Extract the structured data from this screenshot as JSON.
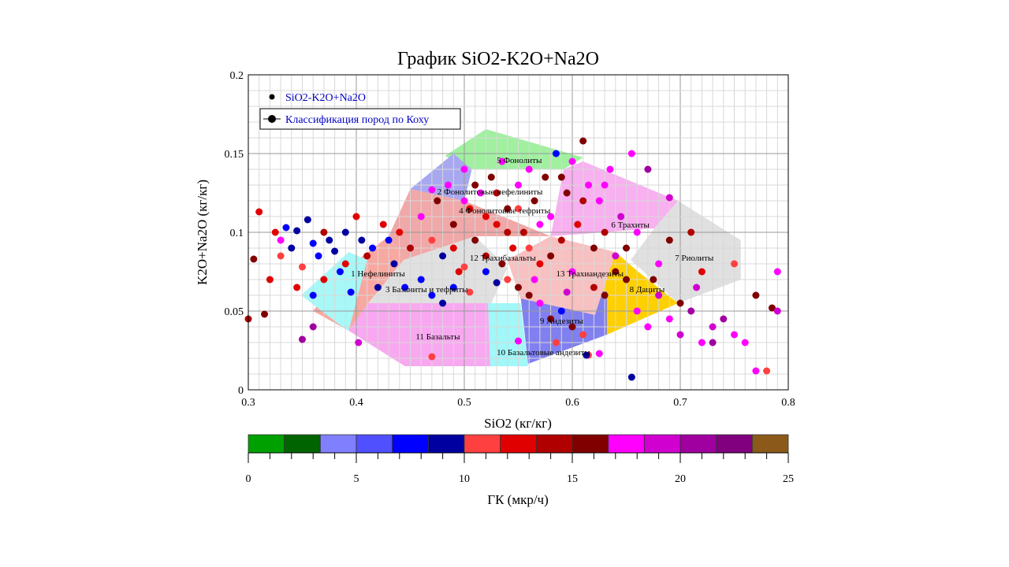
{
  "chart_data": {
    "type": "scatter",
    "title": "График  SiO2-K2O+Na2O",
    "xlabel": "SiO2 (кг/кг)",
    "ylabel": "K2O+Na2O (кг/кг)",
    "xlim": [
      0.3,
      0.8
    ],
    "ylim": [
      0,
      0.2
    ],
    "xticks": [
      "0.3",
      "0.4",
      "0.5",
      "0.6",
      "0.7",
      "0.8"
    ],
    "yticks": [
      "0",
      "0.05",
      "0.1",
      "0.15",
      "0.2"
    ],
    "grid": true,
    "legend": {
      "placement": "top-left",
      "entries": [
        "SiO2-K2O+Na2O",
        "Классификация пород по Коху"
      ],
      "text_color": "#0000c0"
    },
    "colorbar": {
      "label": "ГК (мкр/ч)",
      "range": [
        0,
        25
      ],
      "ticks": [
        "0",
        "5",
        "10",
        "15",
        "20",
        "25"
      ],
      "colors": [
        "#00a000",
        "#006400",
        "#8080ff",
        "#5050ff",
        "#0000ff",
        "#0000a0",
        "#ff4040",
        "#e00000",
        "#b00000",
        "#800000",
        "#ff00ff",
        "#d000d0",
        "#a000a0",
        "#800080",
        "#8b5a1a"
      ]
    },
    "regions": [
      {
        "label": "5 Фонолиты",
        "color": "#a0f0a0",
        "label_at": [
          0.53,
          0.144
        ],
        "poly": [
          [
            0.482,
            0.1485
          ],
          [
            0.52,
            0.1655
          ],
          [
            0.61,
            0.1475
          ],
          [
            0.592,
            0.14
          ],
          [
            0.507,
            0.14
          ]
        ]
      },
      {
        "label": "2 Фонолитовые нефелиниты",
        "color": "#a8a8f0",
        "label_at": [
          0.475,
          0.124
        ],
        "poly": [
          [
            0.45,
            0.1275
          ],
          [
            0.49,
            0.15
          ],
          [
            0.507,
            0.14
          ],
          [
            0.5,
            0.12
          ]
        ]
      },
      {
        "label": "6 Трахиты",
        "color": "#f8b0f0",
        "label_at": [
          0.636,
          0.103
        ],
        "poly": [
          [
            0.61,
            0.145
          ],
          [
            0.698,
            0.12
          ],
          [
            0.676,
            0.1025
          ],
          [
            0.58,
            0.0975
          ],
          [
            0.592,
            0.14
          ]
        ]
      },
      {
        "label": "7 Риолиты",
        "color": "#e0e0e0",
        "label_at": [
          0.695,
          0.082
        ],
        "poly": [
          [
            0.698,
            0.12
          ],
          [
            0.756,
            0.095
          ],
          [
            0.756,
            0.07
          ],
          [
            0.698,
            0.055
          ],
          [
            0.654,
            0.0825
          ],
          [
            0.676,
            0.1025
          ]
        ]
      },
      {
        "label": "8 Дациты",
        "color": "#ffd000",
        "label_at": [
          0.653,
          0.062
        ],
        "poly": [
          [
            0.64,
            0.0875
          ],
          [
            0.661,
            0.075
          ],
          [
            0.698,
            0.055
          ],
          [
            0.632,
            0.035
          ],
          [
            0.621,
            0.0475
          ]
        ]
      },
      {
        "label": "9 Андезиты",
        "color": "#8080f0",
        "label_at": [
          0.57,
          0.042
        ],
        "poly": [
          [
            0.552,
            0.06
          ],
          [
            0.632,
            0.0625
          ],
          [
            0.632,
            0.035
          ],
          [
            0.559,
            0.0165
          ]
        ]
      },
      {
        "label": "10 Базальтовые андезиты",
        "color": "#a0f8f8",
        "label_at": [
          0.53,
          0.022
        ],
        "poly": [
          [
            0.522,
            0.055
          ],
          [
            0.552,
            0.055
          ],
          [
            0.559,
            0.015
          ],
          [
            0.524,
            0.015
          ]
        ]
      },
      {
        "label": "11 Базальты",
        "color": "#f8a8f0",
        "label_at": [
          0.455,
          0.032
        ],
        "poly": [
          [
            0.411,
            0.055
          ],
          [
            0.522,
            0.055
          ],
          [
            0.524,
            0.015
          ],
          [
            0.445,
            0.015
          ],
          [
            0.393,
            0.0375
          ]
        ]
      },
      {
        "label": "3 Базаниты и тефриты",
        "color": "#f8a8a0",
        "label_at": [
          0.427,
          0.062
        ],
        "poly": [
          [
            0.393,
            0.0375
          ],
          [
            0.411,
            0.055
          ],
          [
            0.444,
            0.0825
          ],
          [
            0.43,
            0.0975
          ],
          [
            0.387,
            0.075
          ],
          [
            0.36,
            0.05
          ]
        ]
      },
      {
        "label": "1 Нефелиниты",
        "color": "#a8f8f8",
        "label_at": [
          0.395,
          0.072
        ],
        "poly": [
          [
            0.349,
            0.06
          ],
          [
            0.393,
            0.0875
          ],
          [
            0.41,
            0.0825
          ],
          [
            0.393,
            0.0375
          ],
          [
            0.387,
            0.04
          ]
        ]
      },
      {
        "label": "12 Трахибазальты",
        "color": "#e0e0e0",
        "label_at": [
          0.505,
          0.082
        ],
        "poly": [
          [
            0.444,
            0.0825
          ],
          [
            0.51,
            0.0975
          ],
          [
            0.54,
            0.0775
          ],
          [
            0.525,
            0.055
          ],
          [
            0.411,
            0.055
          ]
        ]
      },
      {
        "label": "13 Трахиандезиты",
        "color": "#f8c0c0",
        "label_at": [
          0.585,
          0.072
        ],
        "poly": [
          [
            0.54,
            0.0825
          ],
          [
            0.58,
            0.0975
          ],
          [
            0.64,
            0.0875
          ],
          [
            0.621,
            0.0475
          ],
          [
            0.552,
            0.058
          ]
        ]
      },
      {
        "label": "4 Фонолитовые тефриты",
        "color": "#f0a8a8",
        "label_at": [
          0.495,
          0.112
        ],
        "poly": [
          [
            0.43,
            0.0975
          ],
          [
            0.45,
            0.1275
          ],
          [
            0.5,
            0.12
          ],
          [
            0.58,
            0.0975
          ],
          [
            0.51,
            0.0975
          ],
          [
            0.444,
            0.0825
          ]
        ]
      }
    ],
    "series_points": [
      [
        0.3,
        0.045,
        14
      ],
      [
        0.31,
        0.113,
        12
      ],
      [
        0.305,
        0.083,
        15
      ],
      [
        0.32,
        0.07,
        13
      ],
      [
        0.33,
        0.095,
        17
      ],
      [
        0.335,
        0.103,
        8
      ],
      [
        0.34,
        0.09,
        9
      ],
      [
        0.345,
        0.101,
        9
      ],
      [
        0.35,
        0.078,
        11
      ],
      [
        0.355,
        0.108,
        9
      ],
      [
        0.36,
        0.093,
        8
      ],
      [
        0.365,
        0.085,
        7
      ],
      [
        0.37,
        0.1,
        14
      ],
      [
        0.375,
        0.095,
        9
      ],
      [
        0.38,
        0.088,
        9
      ],
      [
        0.385,
        0.075,
        8
      ],
      [
        0.39,
        0.08,
        13
      ],
      [
        0.395,
        0.062,
        8
      ],
      [
        0.4,
        0.11,
        12
      ],
      [
        0.405,
        0.095,
        9
      ],
      [
        0.41,
        0.085,
        14
      ],
      [
        0.415,
        0.09,
        8
      ],
      [
        0.42,
        0.065,
        9
      ],
      [
        0.425,
        0.105,
        13
      ],
      [
        0.43,
        0.095,
        8
      ],
      [
        0.435,
        0.08,
        9
      ],
      [
        0.44,
        0.1,
        12
      ],
      [
        0.445,
        0.065,
        8
      ],
      [
        0.35,
        0.032,
        20
      ],
      [
        0.36,
        0.04,
        20
      ],
      [
        0.315,
        0.048,
        15
      ],
      [
        0.402,
        0.03,
        19
      ],
      [
        0.33,
        0.085,
        11
      ],
      [
        0.345,
        0.065,
        12
      ],
      [
        0.37,
        0.07,
        13
      ],
      [
        0.39,
        0.1,
        9
      ],
      [
        0.325,
        0.1,
        12
      ],
      [
        0.36,
        0.06,
        8
      ],
      [
        0.45,
        0.09,
        14
      ],
      [
        0.46,
        0.11,
        17
      ],
      [
        0.47,
        0.095,
        11
      ],
      [
        0.475,
        0.12,
        16
      ],
      [
        0.48,
        0.085,
        9
      ],
      [
        0.485,
        0.13,
        17
      ],
      [
        0.49,
        0.105,
        15
      ],
      [
        0.495,
        0.075,
        12
      ],
      [
        0.5,
        0.14,
        18
      ],
      [
        0.505,
        0.115,
        13
      ],
      [
        0.51,
        0.095,
        16
      ],
      [
        0.515,
        0.125,
        17
      ],
      [
        0.52,
        0.085,
        14
      ],
      [
        0.525,
        0.135,
        15
      ],
      [
        0.53,
        0.105,
        12
      ],
      [
        0.535,
        0.145,
        17
      ],
      [
        0.54,
        0.115,
        16
      ],
      [
        0.545,
        0.09,
        13
      ],
      [
        0.55,
        0.13,
        18
      ],
      [
        0.555,
        0.1,
        14
      ],
      [
        0.56,
        0.14,
        17
      ],
      [
        0.565,
        0.12,
        15
      ],
      [
        0.57,
        0.08,
        12
      ],
      [
        0.575,
        0.135,
        16
      ],
      [
        0.58,
        0.11,
        17
      ],
      [
        0.585,
        0.15,
        8
      ],
      [
        0.59,
        0.095,
        14
      ],
      [
        0.595,
        0.125,
        15
      ],
      [
        0.6,
        0.145,
        17
      ],
      [
        0.605,
        0.105,
        13
      ],
      [
        0.61,
        0.158,
        16
      ],
      [
        0.615,
        0.13,
        17
      ],
      [
        0.62,
        0.09,
        15
      ],
      [
        0.625,
        0.12,
        18
      ],
      [
        0.63,
        0.1,
        14
      ],
      [
        0.635,
        0.14,
        17
      ],
      [
        0.64,
        0.075,
        16
      ],
      [
        0.645,
        0.11,
        19
      ],
      [
        0.65,
        0.09,
        15
      ],
      [
        0.655,
        0.15,
        17
      ],
      [
        0.46,
        0.07,
        8
      ],
      [
        0.47,
        0.06,
        8
      ],
      [
        0.48,
        0.055,
        9
      ],
      [
        0.49,
        0.065,
        7
      ],
      [
        0.5,
        0.078,
        10
      ],
      [
        0.52,
        0.075,
        8
      ],
      [
        0.53,
        0.068,
        9
      ],
      [
        0.54,
        0.07,
        11
      ],
      [
        0.55,
        0.065,
        16
      ],
      [
        0.56,
        0.06,
        15
      ],
      [
        0.57,
        0.055,
        17
      ],
      [
        0.58,
        0.045,
        15
      ],
      [
        0.59,
        0.05,
        8
      ],
      [
        0.6,
        0.04,
        15
      ],
      [
        0.61,
        0.035,
        11
      ],
      [
        0.615,
        0.022,
        10
      ],
      [
        0.625,
        0.023,
        17
      ],
      [
        0.63,
        0.06,
        16
      ],
      [
        0.62,
        0.065,
        14
      ],
      [
        0.6,
        0.075,
        17
      ],
      [
        0.58,
        0.085,
        16
      ],
      [
        0.56,
        0.09,
        11
      ],
      [
        0.54,
        0.1,
        14
      ],
      [
        0.52,
        0.11,
        12
      ],
      [
        0.5,
        0.12,
        17
      ],
      [
        0.51,
        0.13,
        16
      ],
      [
        0.53,
        0.125,
        14
      ],
      [
        0.55,
        0.115,
        11
      ],
      [
        0.57,
        0.105,
        17
      ],
      [
        0.59,
        0.135,
        16
      ],
      [
        0.61,
        0.12,
        14
      ],
      [
        0.63,
        0.13,
        17
      ],
      [
        0.64,
        0.085,
        19
      ],
      [
        0.65,
        0.07,
        15
      ],
      [
        0.47,
        0.021,
        11
      ],
      [
        0.55,
        0.031,
        17
      ],
      [
        0.585,
        0.03,
        10
      ],
      [
        0.613,
        0.022,
        9
      ],
      [
        0.47,
        0.127,
        17
      ],
      [
        0.49,
        0.09,
        12
      ],
      [
        0.505,
        0.062,
        11
      ],
      [
        0.535,
        0.08,
        15
      ],
      [
        0.565,
        0.07,
        17
      ],
      [
        0.595,
        0.062,
        19
      ],
      [
        0.66,
        0.05,
        17
      ],
      [
        0.67,
        0.04,
        18
      ],
      [
        0.68,
        0.06,
        19
      ],
      [
        0.69,
        0.045,
        17
      ],
      [
        0.7,
        0.035,
        19
      ],
      [
        0.71,
        0.05,
        21
      ],
      [
        0.72,
        0.03,
        17
      ],
      [
        0.73,
        0.04,
        19
      ],
      [
        0.74,
        0.045,
        20
      ],
      [
        0.75,
        0.035,
        17
      ],
      [
        0.76,
        0.03,
        18
      ],
      [
        0.77,
        0.012,
        17
      ],
      [
        0.78,
        0.012,
        11
      ],
      [
        0.785,
        0.052,
        16
      ],
      [
        0.79,
        0.075,
        17
      ],
      [
        0.79,
        0.05,
        19
      ],
      [
        0.75,
        0.08,
        11
      ],
      [
        0.77,
        0.06,
        15
      ],
      [
        0.72,
        0.075,
        13
      ],
      [
        0.715,
        0.065,
        19
      ],
      [
        0.7,
        0.055,
        16
      ],
      [
        0.73,
        0.03,
        21
      ],
      [
        0.655,
        0.008,
        9
      ],
      [
        0.68,
        0.08,
        18
      ],
      [
        0.69,
        0.095,
        15
      ],
      [
        0.71,
        0.1,
        14
      ],
      [
        0.66,
        0.1,
        17
      ],
      [
        0.675,
        0.07,
        16
      ],
      [
        0.69,
        0.122,
        19
      ],
      [
        0.67,
        0.14,
        20
      ]
    ]
  }
}
